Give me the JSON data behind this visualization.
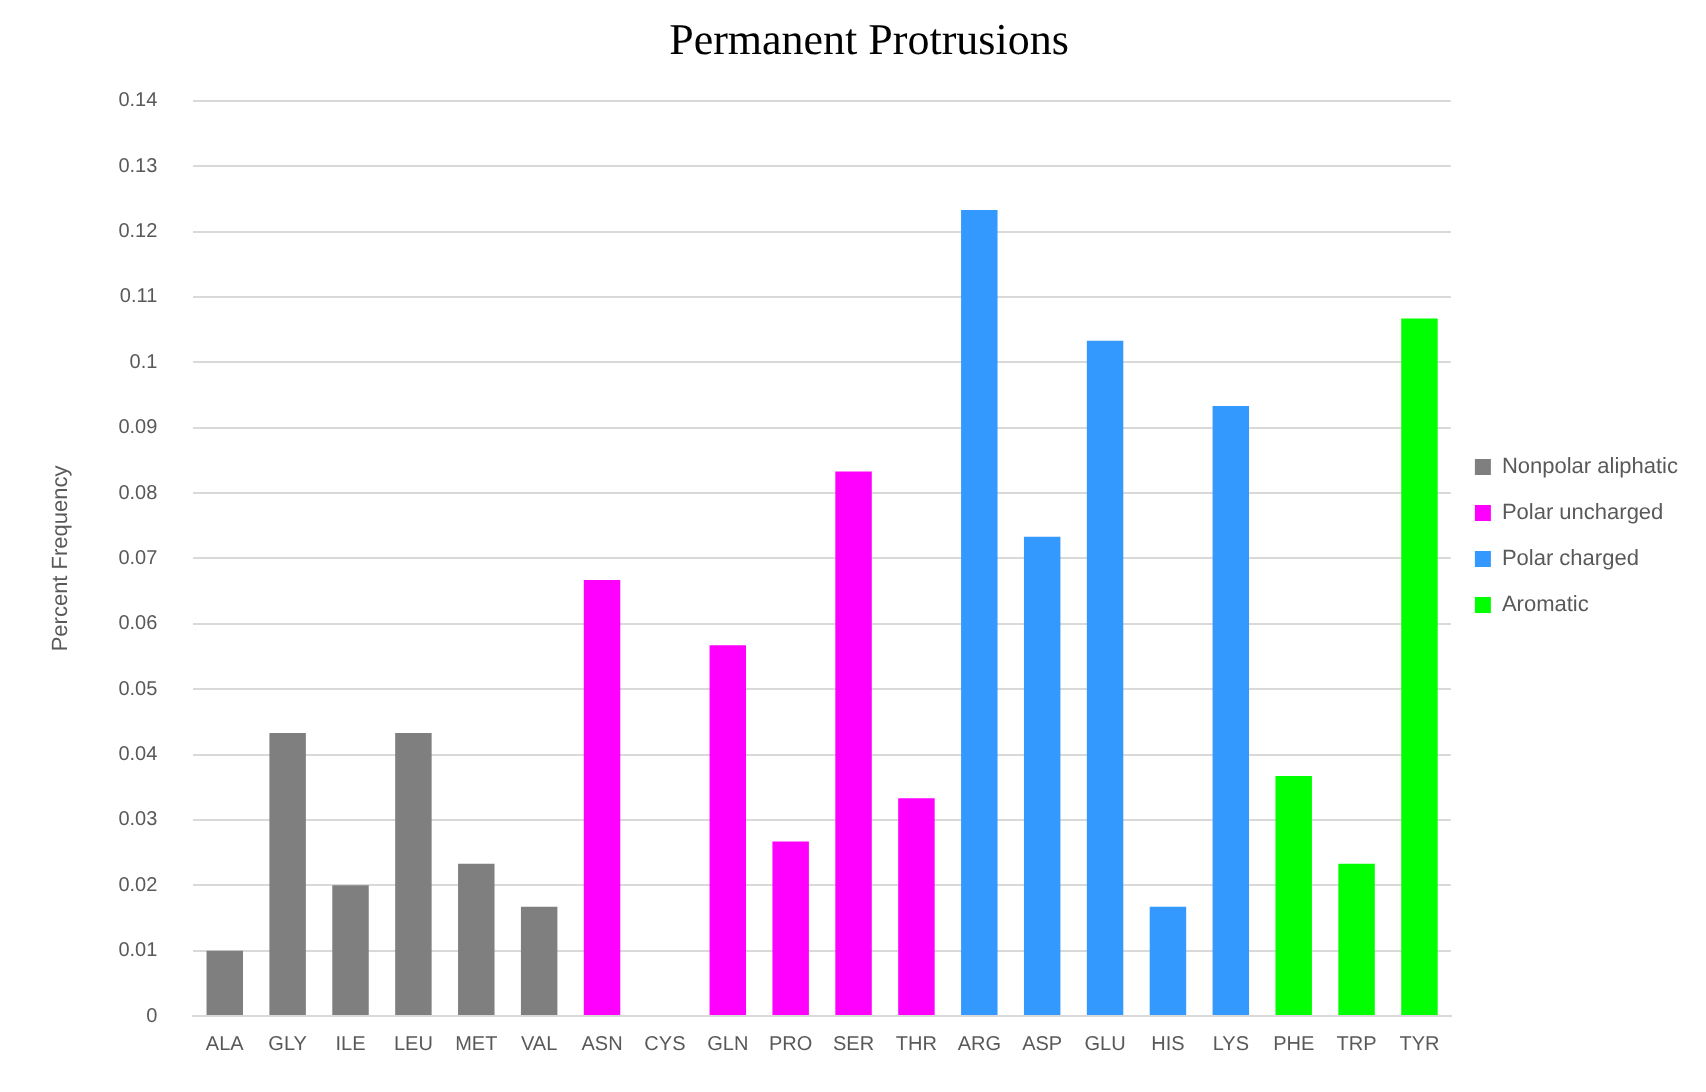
{
  "chart_data": {
    "type": "bar",
    "title": "Permanent Protrusions",
    "ylabel": "Percent Frequency",
    "categories": [
      "ALA",
      "GLY",
      "ILE",
      "LEU",
      "MET",
      "VAL",
      "ASN",
      "CYS",
      "GLN",
      "PRO",
      "SER",
      "THR",
      "ARG",
      "ASP",
      "GLU",
      "HIS",
      "LYS",
      "PHE",
      "TRP",
      "TYR"
    ],
    "series": [
      {
        "name": "Nonpolar aliphatic",
        "color": "#7f7f7f",
        "values": [
          0.01,
          0.0433,
          0.02,
          0.0433,
          0.0233,
          0.0167,
          null,
          null,
          null,
          null,
          null,
          null,
          null,
          null,
          null,
          null,
          null,
          null,
          null,
          null
        ]
      },
      {
        "name": "Polar uncharged",
        "color": "#ff00ff",
        "values": [
          null,
          null,
          null,
          null,
          null,
          null,
          0.0667,
          0,
          0.0567,
          0.0267,
          0.0833,
          0.0333,
          null,
          null,
          null,
          null,
          null,
          null,
          null,
          null
        ]
      },
      {
        "name": "Polar charged",
        "color": "#3399ff",
        "values": [
          null,
          null,
          null,
          null,
          null,
          null,
          null,
          null,
          null,
          null,
          null,
          null,
          0.1233,
          0.0733,
          0.1033,
          0.0167,
          0.0933,
          null,
          null,
          null
        ]
      },
      {
        "name": "Aromatic",
        "color": "#00ff00",
        "values": [
          null,
          null,
          null,
          null,
          null,
          null,
          null,
          null,
          null,
          null,
          null,
          null,
          null,
          null,
          null,
          null,
          null,
          0.0367,
          0.0233,
          0.1067
        ]
      }
    ],
    "ylim": [
      0,
      0.14
    ],
    "yticks": [
      0,
      0.01,
      0.02,
      0.03,
      0.04,
      0.05,
      0.06,
      0.07,
      0.08,
      0.09,
      0.1,
      0.11,
      0.12,
      0.13,
      0.14
    ],
    "grid": "y",
    "legend": "right"
  }
}
